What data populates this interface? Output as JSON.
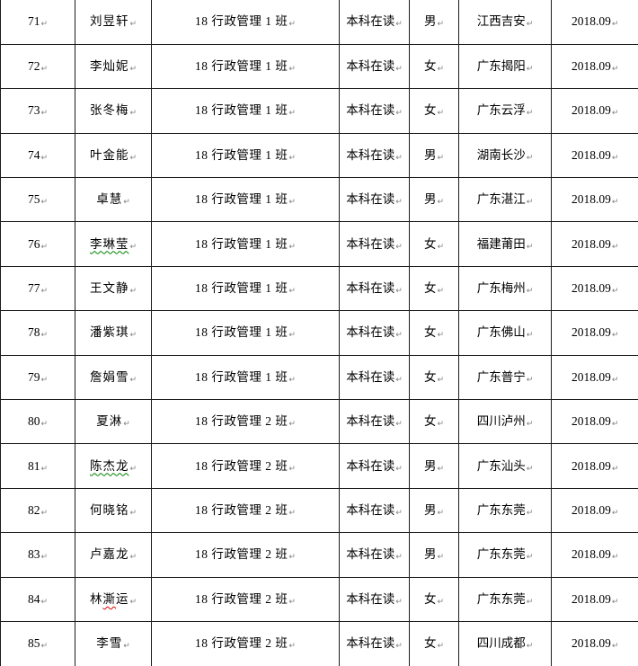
{
  "table": {
    "paragraph_mark": "↵",
    "colors": {
      "border": "#1c1c1c",
      "paragraph_mark": "#808080",
      "spellcheck_green": "#008000",
      "spellcheck_red": "#dd0000"
    },
    "rows": [
      {
        "number": "71",
        "name_parts": [
          {
            "text": "刘昱轩"
          }
        ],
        "class_name": "18 行政管理 1 班",
        "status": "本科在读",
        "gender": "男",
        "hometown": "江西吉安",
        "enroll_date": "2018.09"
      },
      {
        "number": "72",
        "name_parts": [
          {
            "text": "李灿妮"
          }
        ],
        "class_name": "18 行政管理 1 班",
        "status": "本科在读",
        "gender": "女",
        "hometown": "广东揭阳",
        "enroll_date": "2018.09"
      },
      {
        "number": "73",
        "name_parts": [
          {
            "text": "张冬梅"
          }
        ],
        "class_name": "18 行政管理 1 班",
        "status": "本科在读",
        "gender": "女",
        "hometown": "广东云浮",
        "enroll_date": "2018.09"
      },
      {
        "number": "74",
        "name_parts": [
          {
            "text": "叶金能"
          }
        ],
        "class_name": "18 行政管理 1 班",
        "status": "本科在读",
        "gender": "男",
        "hometown": "湖南长沙",
        "enroll_date": "2018.09"
      },
      {
        "number": "75",
        "name_parts": [
          {
            "text": "卓慧"
          }
        ],
        "class_name": "18 行政管理 1 班",
        "status": "本科在读",
        "gender": "男",
        "hometown": "广东湛江",
        "enroll_date": "2018.09"
      },
      {
        "number": "76",
        "name_parts": [
          {
            "text": "李琳莹",
            "underline": "green"
          }
        ],
        "class_name": "18 行政管理 1 班",
        "status": "本科在读",
        "gender": "女",
        "hometown": "福建莆田",
        "enroll_date": "2018.09"
      },
      {
        "number": "77",
        "name_parts": [
          {
            "text": "王文静"
          }
        ],
        "class_name": "18 行政管理 1 班",
        "status": "本科在读",
        "gender": "女",
        "hometown": "广东梅州",
        "enroll_date": "2018.09"
      },
      {
        "number": "78",
        "name_parts": [
          {
            "text": "潘紫琪"
          }
        ],
        "class_name": "18 行政管理 1 班",
        "status": "本科在读",
        "gender": "女",
        "hometown": "广东佛山",
        "enroll_date": "2018.09"
      },
      {
        "number": "79",
        "name_parts": [
          {
            "text": "詹娟雪"
          }
        ],
        "class_name": "18 行政管理 1 班",
        "status": "本科在读",
        "gender": "女",
        "hometown": "广东普宁",
        "enroll_date": "2018.09"
      },
      {
        "number": "80",
        "name_parts": [
          {
            "text": "夏淋"
          }
        ],
        "class_name": "18 行政管理 2 班",
        "status": "本科在读",
        "gender": "女",
        "hometown": "四川泸州",
        "enroll_date": "2018.09"
      },
      {
        "number": "81",
        "name_parts": [
          {
            "text": "陈杰龙",
            "underline": "green"
          }
        ],
        "class_name": "18 行政管理 2 班",
        "status": "本科在读",
        "gender": "男",
        "hometown": "广东汕头",
        "enroll_date": "2018.09"
      },
      {
        "number": "82",
        "name_parts": [
          {
            "text": "何晓铭"
          }
        ],
        "class_name": "18 行政管理 2 班",
        "status": "本科在读",
        "gender": "男",
        "hometown": "广东东莞",
        "enroll_date": "2018.09"
      },
      {
        "number": "83",
        "name_parts": [
          {
            "text": "卢嘉龙"
          }
        ],
        "class_name": "18 行政管理 2 班",
        "status": "本科在读",
        "gender": "男",
        "hometown": "广东东莞",
        "enroll_date": "2018.09"
      },
      {
        "number": "84",
        "name_parts": [
          {
            "text": "林"
          },
          {
            "text": "澌",
            "underline": "red"
          },
          {
            "text": "运"
          }
        ],
        "class_name": "18 行政管理 2 班",
        "status": "本科在读",
        "gender": "女",
        "hometown": "广东东莞",
        "enroll_date": "2018.09"
      },
      {
        "number": "85",
        "name_parts": [
          {
            "text": "李雪"
          }
        ],
        "class_name": "18 行政管理 2 班",
        "status": "本科在读",
        "gender": "女",
        "hometown": "四川成都",
        "enroll_date": "2018.09"
      }
    ]
  }
}
